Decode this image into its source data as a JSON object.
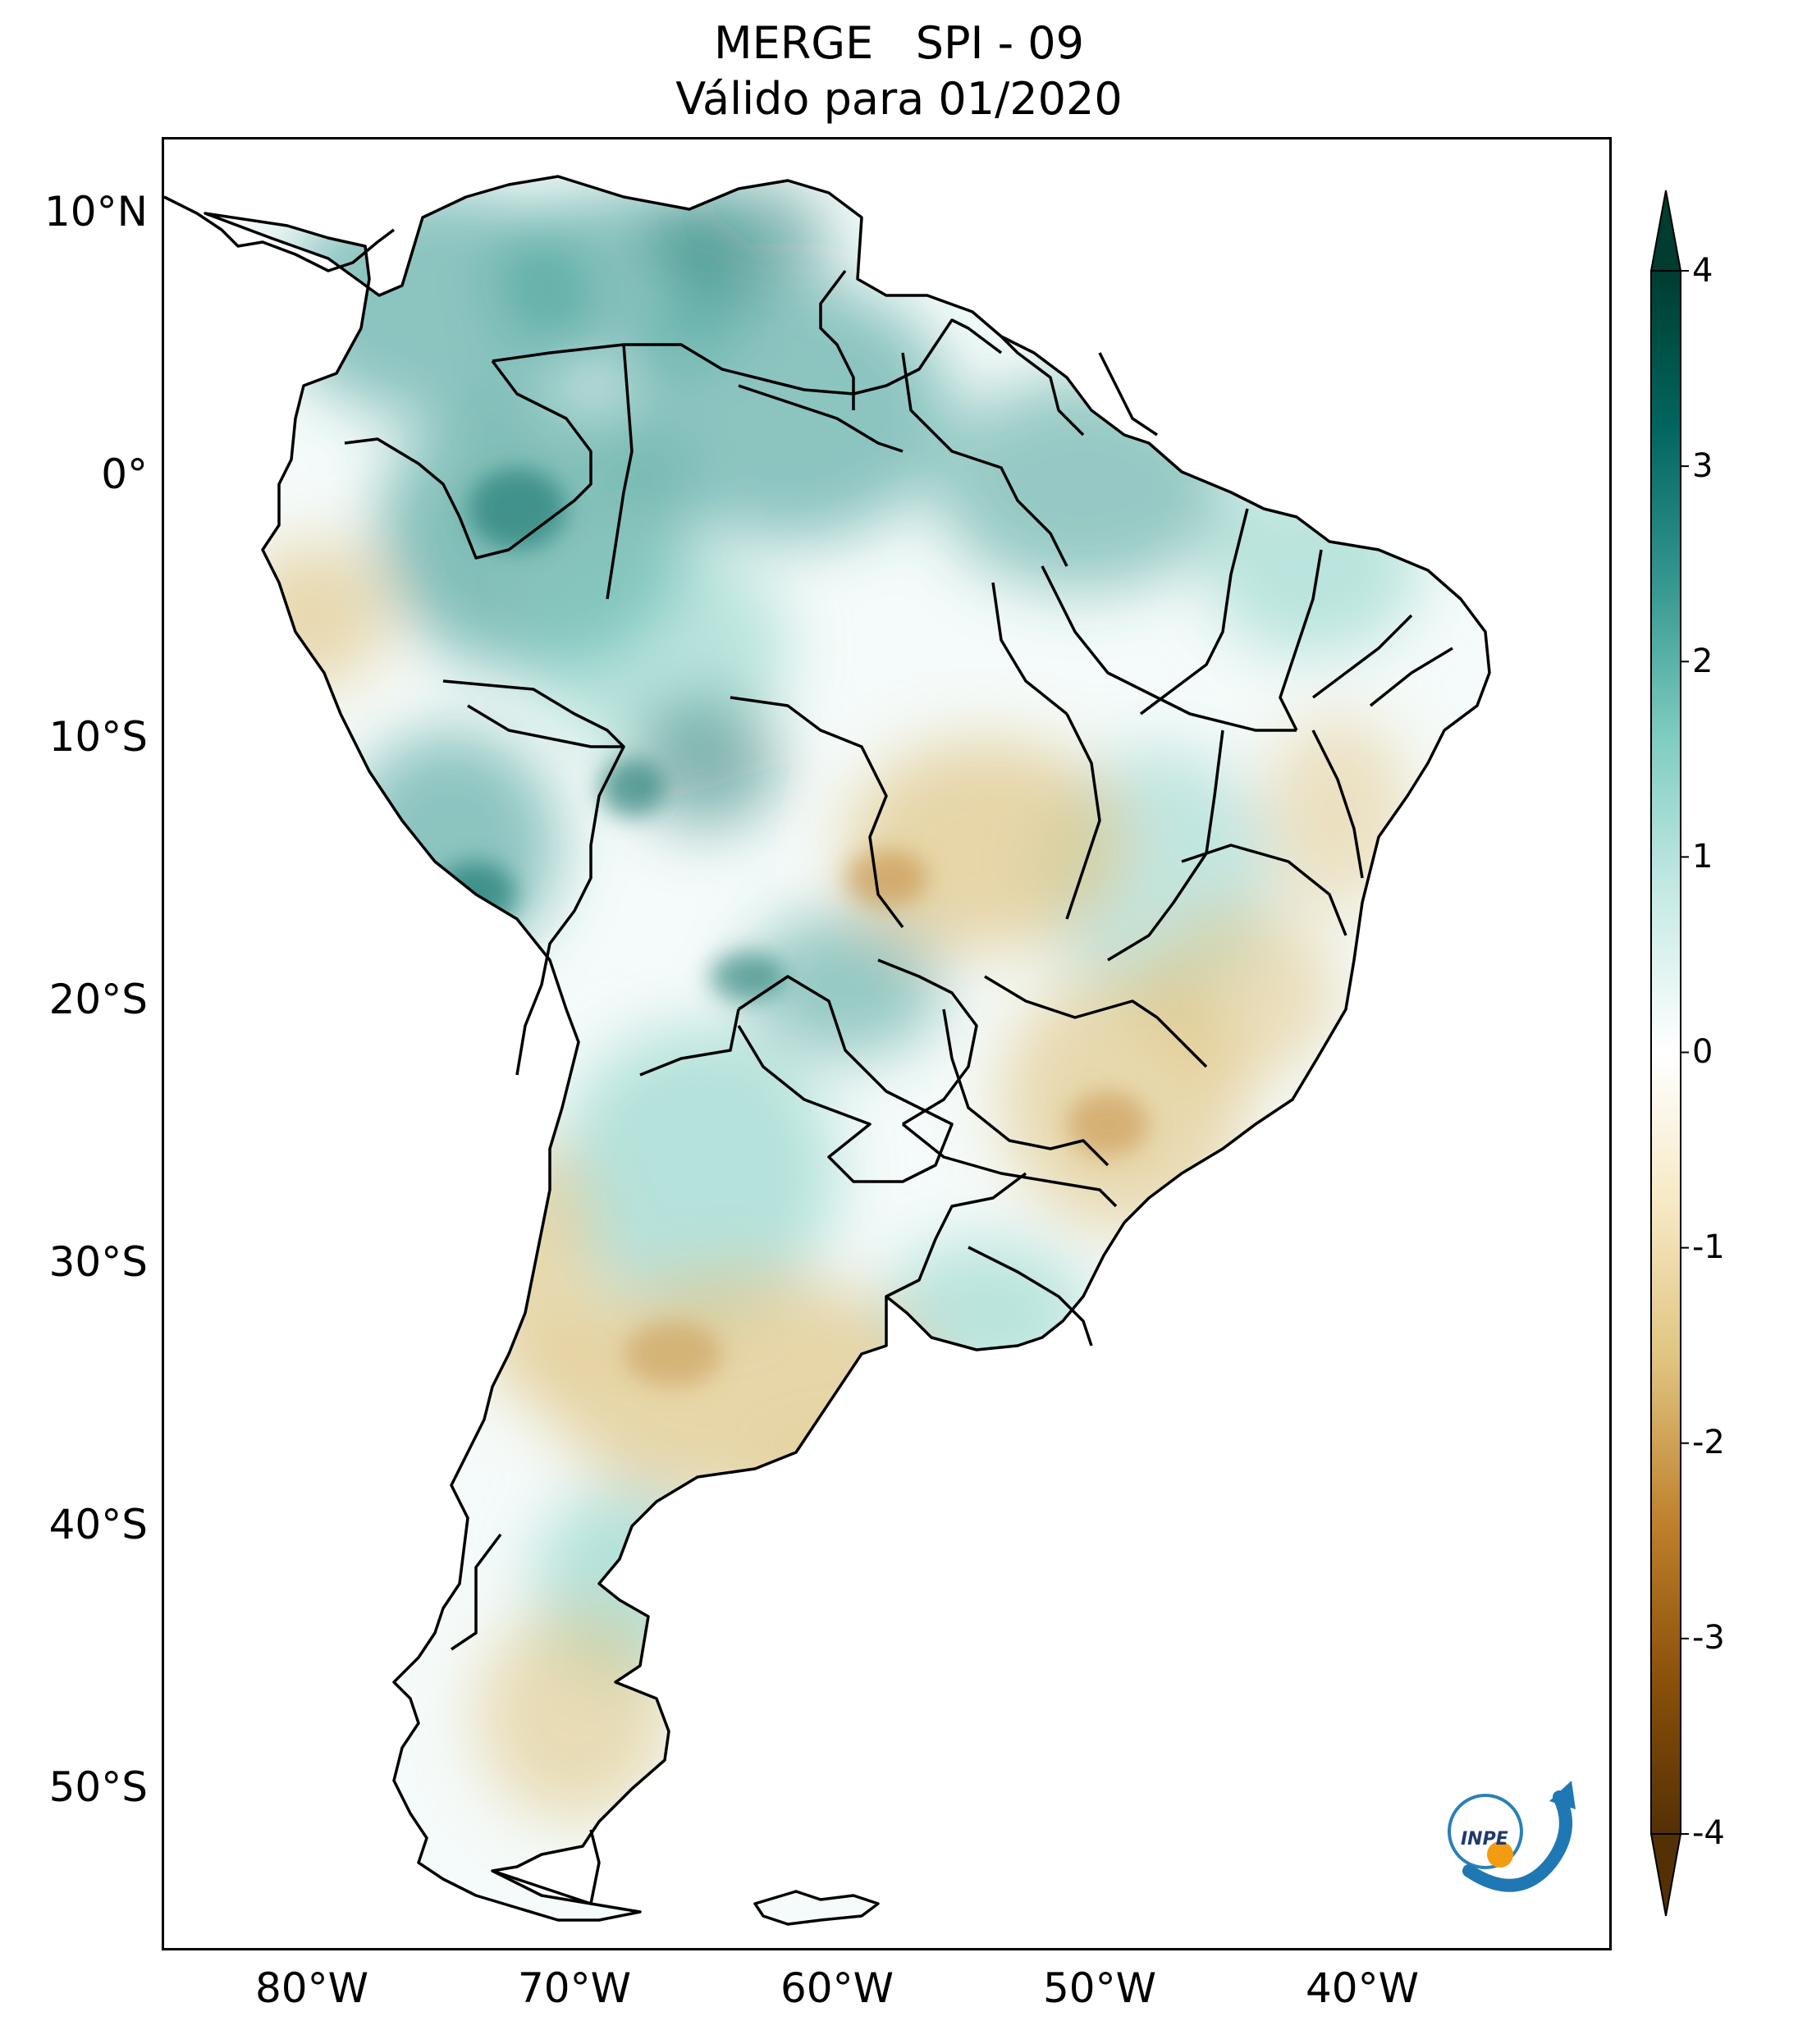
{
  "title": {
    "line1": "MERGE   SPI - 09",
    "line2": "Válido para 01/2020"
  },
  "map": {
    "lat_ticks": [
      "10°N",
      "0°",
      "10°S",
      "20°S",
      "30°S",
      "40°S",
      "50°S"
    ],
    "lon_ticks": [
      "80°W",
      "70°W",
      "60°W",
      "50°W",
      "40°W"
    ],
    "logo_text": "INPE",
    "colors": {
      "positive": "#1b8a7a",
      "negative": "#c7964f",
      "neutral": "#ffffff",
      "border": "#000000"
    }
  },
  "colorbar": {
    "min": -4,
    "max": 4,
    "tick_labels": [
      "4",
      "3",
      "2",
      "1",
      "0",
      "-1",
      "-2",
      "-3",
      "-4"
    ],
    "colors": [
      "#543005",
      "#8c510a",
      "#bf812d",
      "#dfc27d",
      "#f6e8c3",
      "#ffffff",
      "#c7eae5",
      "#80cdc1",
      "#35978f",
      "#01665e",
      "#003c30"
    ]
  }
}
